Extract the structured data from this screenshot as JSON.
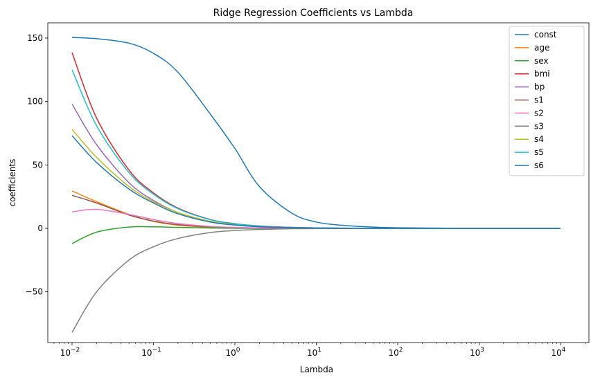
{
  "chart_data": {
    "type": "line",
    "title": "Ridge Regression Coefficients vs Lambda",
    "xlabel": "Lambda",
    "ylabel": "coefficients",
    "xscale": "log",
    "xlim": [
      0.01,
      10000
    ],
    "ylim": [
      -90,
      162
    ],
    "xticks": [
      {
        "value": 0.01,
        "base": "10",
        "exp": "−2"
      },
      {
        "value": 0.1,
        "base": "10",
        "exp": "−1"
      },
      {
        "value": 1,
        "base": "10",
        "exp": "0"
      },
      {
        "value": 10,
        "base": "10",
        "exp": "1"
      },
      {
        "value": 100,
        "base": "10",
        "exp": "2"
      },
      {
        "value": 1000,
        "base": "10",
        "exp": "3"
      },
      {
        "value": 10000,
        "base": "10",
        "exp": "4"
      }
    ],
    "yticks": [
      {
        "value": 150,
        "label": "150"
      },
      {
        "value": 100,
        "label": "100"
      },
      {
        "value": 50,
        "label": "50"
      },
      {
        "value": 0,
        "label": "0"
      },
      {
        "value": -50,
        "label": "−50"
      }
    ],
    "grid": false,
    "legend_position": "top-right",
    "x": [
      0.01,
      0.02,
      0.05,
      0.1,
      0.2,
      0.5,
      1,
      2,
      5,
      10,
      20,
      50,
      100,
      1000,
      10000
    ],
    "series": [
      {
        "name": "const",
        "color": "#1f77b4",
        "values": [
          150.5,
          149.5,
          146,
          138,
          123,
          90,
          63,
          33,
          12,
          5,
          2.5,
          1,
          0.5,
          0.05,
          0
        ]
      },
      {
        "name": "age",
        "color": "#ff7f0e",
        "values": [
          29.5,
          21,
          11,
          5.5,
          2.5,
          0.8,
          0.4,
          0.2,
          0.1,
          0,
          0,
          0,
          0,
          0,
          0
        ]
      },
      {
        "name": "sex",
        "color": "#2ca02c",
        "values": [
          -12,
          -3,
          1,
          1.2,
          0.8,
          0.3,
          0.1,
          0,
          0,
          0,
          0,
          0,
          0,
          0,
          0
        ]
      },
      {
        "name": "bmi",
        "color": "#d62728",
        "values": [
          138.5,
          87,
          46,
          28,
          16,
          7,
          3.7,
          1.9,
          0.8,
          0.4,
          0.2,
          0.1,
          0,
          0,
          0
        ]
      },
      {
        "name": "bp",
        "color": "#9467bd",
        "values": [
          98,
          66,
          36,
          22,
          12.5,
          5.5,
          2.9,
          1.5,
          0.6,
          0.3,
          0.1,
          0,
          0,
          0,
          0
        ]
      },
      {
        "name": "s1",
        "color": "#8c564b",
        "values": [
          26,
          20,
          10.5,
          5.8,
          2.9,
          1.2,
          0.6,
          0.3,
          0.1,
          0,
          0,
          0,
          0,
          0,
          0
        ]
      },
      {
        "name": "s2",
        "color": "#e377c2",
        "values": [
          13,
          15,
          11,
          7,
          3.8,
          1.5,
          0.8,
          0.4,
          0.1,
          0,
          0,
          0,
          0,
          0,
          0
        ]
      },
      {
        "name": "s3",
        "color": "#7f7f7f",
        "values": [
          -82,
          -50,
          -25,
          -14.5,
          -8,
          -3.3,
          -1.7,
          -0.9,
          -0.3,
          -0.2,
          -0.1,
          0,
          0,
          0,
          0
        ]
      },
      {
        "name": "s4",
        "color": "#bcbd22",
        "values": [
          78,
          56,
          33,
          21,
          12.5,
          5.5,
          2.9,
          1.5,
          0.6,
          0.3,
          0.1,
          0,
          0,
          0,
          0
        ]
      },
      {
        "name": "s5",
        "color": "#17becf",
        "values": [
          125,
          81,
          44,
          27,
          15.5,
          6.8,
          3.6,
          1.8,
          0.7,
          0.4,
          0.2,
          0.1,
          0,
          0,
          0
        ]
      },
      {
        "name": "s6",
        "color": "#1f77b4",
        "values": [
          73,
          52,
          31,
          20,
          11.5,
          5,
          2.6,
          1.3,
          0.5,
          0.3,
          0.1,
          0,
          0,
          0,
          0
        ]
      }
    ]
  }
}
